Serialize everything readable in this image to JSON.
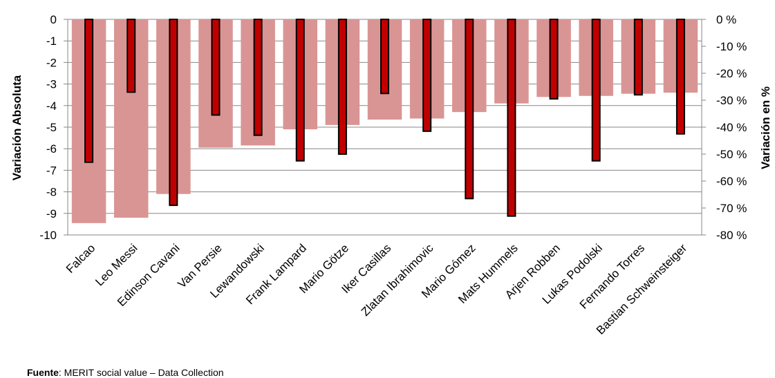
{
  "chart_data": {
    "type": "bar",
    "categories": [
      "Falcao",
      "Leo Messi",
      "Edinson Cavani",
      "Van Persie",
      "Lewandowski",
      "Frank Lampard",
      "Mario Götze",
      "Iker Casillas",
      "Zlatan Ibrahimovic",
      "Mario Gómez",
      "Mats Hummels",
      "Arjen Robben",
      "Lukas Podolski",
      "Fernando Torres",
      "Bastian Schweinsteiger"
    ],
    "series": [
      {
        "axis": "left",
        "color": "#d99594",
        "values": [
          -9.45,
          -9.2,
          -8.1,
          -5.95,
          -5.85,
          -5.1,
          -4.9,
          -4.65,
          -4.6,
          -4.3,
          -3.9,
          -3.6,
          -3.55,
          -3.45,
          -3.4
        ]
      },
      {
        "axis": "right",
        "color": "#c00000",
        "values": [
          -53,
          -27,
          -69,
          -35.5,
          -43,
          -52.5,
          -50,
          -27.5,
          -41.5,
          -66.5,
          -73,
          -29.5,
          -52.5,
          -28,
          -42.5
        ]
      }
    ],
    "ylabel": "Variación Absoluta",
    "y2label": "Variación en %",
    "ylim": [
      -10,
      0
    ],
    "y2lim": [
      -80,
      0
    ],
    "yticks": [
      "0",
      "-1",
      "-2",
      "-3",
      "-4",
      "-5",
      "-6",
      "-7",
      "-8",
      "-9",
      "-10"
    ],
    "y2ticks": [
      "0 %",
      "-10 %",
      "-20 %",
      "-30 %",
      "-40 %",
      "-50 %",
      "-60 %",
      "-70 %",
      "-80 %"
    ],
    "grid": true
  },
  "source": {
    "label": "Fuente",
    "text": ": MERIT social value – Data Collection"
  }
}
